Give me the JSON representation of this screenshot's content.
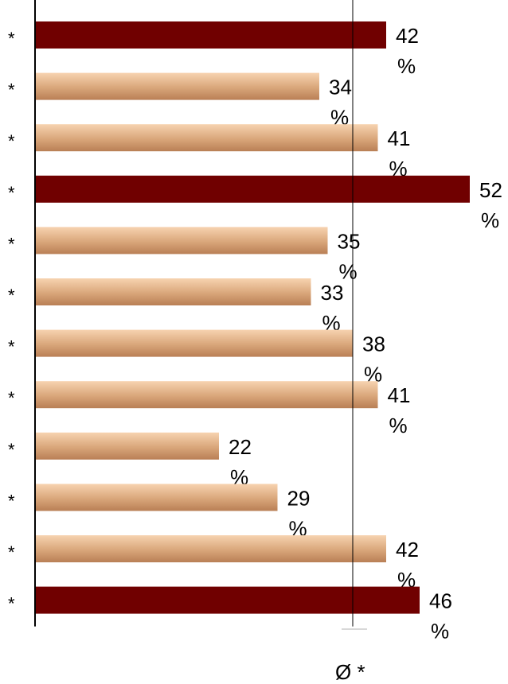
{
  "chart_data": {
    "type": "bar",
    "orientation": "horizontal",
    "categories": [
      "*",
      "*",
      "*",
      "*",
      "*",
      "*",
      "*",
      "*",
      "*",
      "*",
      "*",
      "*"
    ],
    "series": [
      {
        "values": [
          42,
          34,
          41,
          52,
          35,
          33,
          38,
          41,
          22,
          29,
          42,
          46
        ]
      }
    ],
    "highlighted": [
      true,
      false,
      false,
      true,
      false,
      false,
      false,
      false,
      false,
      false,
      false,
      true
    ],
    "value_suffix": "%",
    "average": {
      "value": 38,
      "label": "Ø *"
    },
    "xlim": [
      0,
      52
    ],
    "grid": false,
    "colors": {
      "highlight": "#700000",
      "normal_top": "#f7d3b0",
      "normal_mid": "#d9a67a",
      "normal_bottom": "#b97f55",
      "axis": "#000000"
    }
  }
}
